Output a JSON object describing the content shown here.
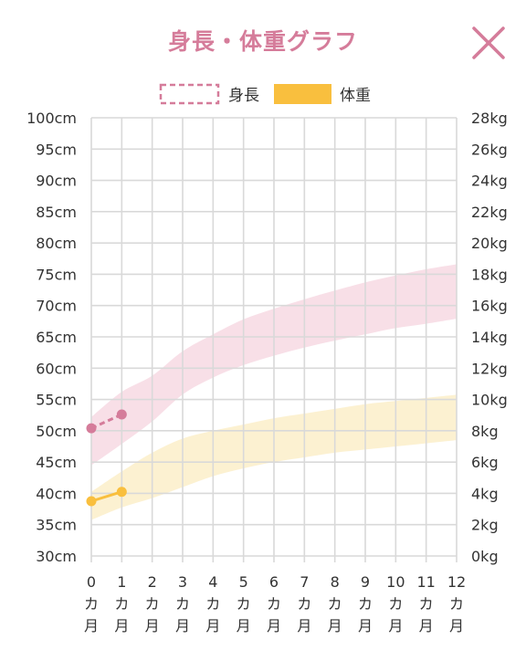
{
  "header": {
    "title": "身長・体重グラフ",
    "close_icon": "close-icon"
  },
  "colors": {
    "height": "#d57c9a",
    "weight": "#f9bf3e",
    "height_band": "#f7dbe4",
    "weight_band": "#fcefcc",
    "grid": "#d9d9d9",
    "title": "#d57c9a"
  },
  "chart_data": {
    "type": "line",
    "legend": [
      {
        "label": "身長",
        "style": "dashed-pink"
      },
      {
        "label": "体重",
        "style": "solid-yellow"
      }
    ],
    "legend_position": "top-center",
    "grid": true,
    "x": [
      0,
      1,
      2,
      3,
      4,
      5,
      6,
      7,
      8,
      9,
      10,
      11,
      12
    ],
    "x_tick_labels": [
      "0",
      "1",
      "2",
      "3",
      "4",
      "5",
      "6",
      "7",
      "8",
      "9",
      "10",
      "11",
      "12"
    ],
    "x_unit_lines": [
      "カ",
      "月"
    ],
    "xlim": [
      0,
      12
    ],
    "left_axis": {
      "unit": "cm",
      "ylim": [
        30,
        100
      ],
      "ticks": [
        "100cm",
        "95cm",
        "90cm",
        "85cm",
        "80cm",
        "75cm",
        "70cm",
        "65cm",
        "60cm",
        "55cm",
        "50cm",
        "45cm",
        "40cm",
        "35cm",
        "30cm"
      ]
    },
    "right_axis": {
      "unit": "kg",
      "ylim": [
        0,
        28
      ],
      "ticks": [
        "28kg",
        "26kg",
        "24kg",
        "22kg",
        "20kg",
        "18kg",
        "16kg",
        "14kg",
        "12kg",
        "10kg",
        "8kg",
        "6kg",
        "4kg",
        "2kg",
        "0kg"
      ]
    },
    "height_band": {
      "x": [
        0,
        1,
        2,
        3,
        4,
        5,
        6,
        7,
        8,
        9,
        10,
        11,
        12
      ],
      "upper": [
        52.2,
        56.2,
        58.8,
        62.7,
        65.4,
        67.8,
        69.5,
        71.0,
        72.4,
        73.7,
        74.8,
        75.8,
        76.6
      ],
      "lower": [
        44.5,
        47.9,
        51.5,
        55.8,
        58.5,
        60.5,
        62.0,
        63.3,
        64.4,
        65.4,
        66.4,
        67.1,
        67.9
      ]
    },
    "weight_band": {
      "x": [
        0,
        1,
        2,
        3,
        4,
        5,
        6,
        7,
        8,
        9,
        10,
        11,
        12
      ],
      "upper": [
        4.1,
        5.4,
        6.6,
        7.5,
        8.0,
        8.4,
        8.8,
        9.1,
        9.4,
        9.7,
        9.9,
        10.1,
        10.3
      ],
      "lower": [
        2.3,
        3.1,
        3.7,
        4.4,
        5.1,
        5.6,
        6.0,
        6.3,
        6.6,
        6.8,
        7.0,
        7.2,
        7.4
      ]
    },
    "series": [
      {
        "name": "身長",
        "axis": "left",
        "x": [
          0,
          1
        ],
        "y": [
          50.4,
          52.6
        ],
        "line_style": "dashed"
      },
      {
        "name": "体重",
        "axis": "right",
        "x": [
          0,
          1
        ],
        "y": [
          3.5,
          4.1
        ],
        "line_style": "solid"
      }
    ]
  }
}
